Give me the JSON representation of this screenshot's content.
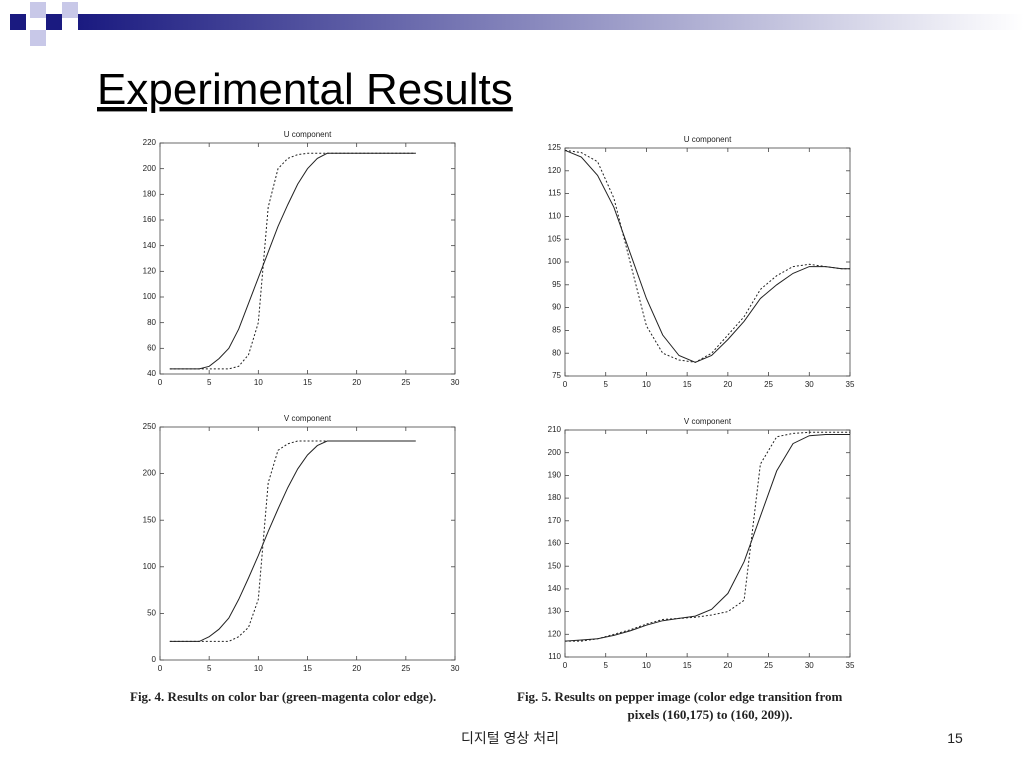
{
  "slide": {
    "title": "Experimental Results",
    "footer": "디지털 영상 처리",
    "page": "15",
    "captions": [
      "Fig. 4. Results on color bar (green-magenta color edge).",
      "Fig. 5. Results on pepper image (color edge transition from",
      "pixels (160,175) to (160, 209))."
    ]
  },
  "chart_data": [
    {
      "type": "line",
      "title": "U component",
      "x": [
        1,
        2,
        3,
        4,
        5,
        6,
        7,
        8,
        9,
        10,
        11,
        12,
        13,
        14,
        15,
        16,
        17,
        18,
        19,
        20,
        21,
        22,
        23,
        24,
        25,
        26
      ],
      "series": [
        {
          "color": "#222222",
          "linestyle": "solid",
          "values": [
            44,
            44,
            44,
            44,
            46,
            52,
            60,
            75,
            95,
            115,
            135,
            155,
            172,
            188,
            200,
            208,
            212,
            212,
            212,
            212,
            212,
            212,
            212,
            212,
            212,
            212
          ]
        },
        {
          "color": "#222222",
          "linestyle": "dotted",
          "values": [
            44,
            44,
            44,
            44,
            44,
            44,
            44,
            46,
            55,
            80,
            170,
            200,
            208,
            211,
            212,
            212,
            212,
            212,
            212,
            212,
            212,
            212,
            212,
            212,
            212,
            212
          ]
        }
      ],
      "xlim": [
        0,
        30
      ],
      "xticks": [
        0,
        5,
        10,
        15,
        20,
        25,
        30
      ],
      "ylim": [
        40,
        220
      ],
      "yticks": [
        40,
        60,
        80,
        100,
        120,
        140,
        160,
        180,
        200,
        220
      ]
    },
    {
      "type": "line",
      "title": "V component",
      "x": [
        1,
        2,
        3,
        4,
        5,
        6,
        7,
        8,
        9,
        10,
        11,
        12,
        13,
        14,
        15,
        16,
        17,
        18,
        19,
        20,
        21,
        22,
        23,
        24,
        25,
        26
      ],
      "series": [
        {
          "color": "#222222",
          "linestyle": "solid",
          "values": [
            20,
            20,
            20,
            20,
            25,
            33,
            45,
            65,
            88,
            112,
            138,
            162,
            185,
            205,
            220,
            230,
            235,
            235,
            235,
            235,
            235,
            235,
            235,
            235,
            235,
            235
          ]
        },
        {
          "color": "#222222",
          "linestyle": "dotted",
          "values": [
            20,
            20,
            20,
            20,
            20,
            20,
            20,
            25,
            35,
            65,
            190,
            225,
            232,
            235,
            235,
            235,
            235,
            235,
            235,
            235,
            235,
            235,
            235,
            235,
            235,
            235
          ]
        }
      ],
      "xlim": [
        0,
        30
      ],
      "xticks": [
        0,
        5,
        10,
        15,
        20,
        25,
        30
      ],
      "ylim": [
        0,
        250
      ],
      "yticks": [
        0,
        50,
        100,
        150,
        200,
        250
      ]
    },
    {
      "type": "line",
      "title": "U component",
      "x": [
        0,
        2,
        4,
        6,
        8,
        10,
        12,
        14,
        16,
        18,
        20,
        22,
        24,
        26,
        28,
        30,
        32,
        34,
        35
      ],
      "series": [
        {
          "color": "#222222",
          "linestyle": "solid",
          "values": [
            124.5,
            123,
            119,
            112,
            102,
            92,
            84,
            79.5,
            78,
            79.5,
            83,
            87,
            92,
            95,
            97.5,
            99,
            99,
            98.5,
            98.5
          ]
        },
        {
          "color": "#222222",
          "linestyle": "dotted",
          "values": [
            124.5,
            124,
            122,
            114,
            100,
            86,
            80,
            78.5,
            78,
            80,
            84,
            88,
            94,
            97,
            99,
            99.5,
            99,
            98.5,
            98.5
          ]
        }
      ],
      "xlim": [
        0,
        35
      ],
      "xticks": [
        0,
        5,
        10,
        15,
        20,
        25,
        30,
        35
      ],
      "ylim": [
        75,
        125
      ],
      "yticks": [
        75,
        80,
        85,
        90,
        95,
        100,
        105,
        110,
        115,
        120,
        125
      ]
    },
    {
      "type": "line",
      "title": "V component",
      "x": [
        0,
        2,
        4,
        6,
        8,
        10,
        12,
        14,
        16,
        18,
        20,
        22,
        24,
        26,
        28,
        30,
        32,
        35
      ],
      "series": [
        {
          "color": "#222222",
          "linestyle": "solid",
          "values": [
            117,
            117.5,
            118,
            119.5,
            121.5,
            124,
            126,
            127,
            128,
            131,
            138,
            152,
            172,
            192,
            204,
            207.5,
            208,
            208
          ]
        },
        {
          "color": "#222222",
          "linestyle": "dotted",
          "values": [
            117,
            117,
            118,
            120,
            122,
            124.5,
            126.5,
            127,
            127.5,
            128.5,
            130,
            135,
            195,
            207,
            208.5,
            209,
            209,
            209
          ]
        }
      ],
      "xlim": [
        0,
        35
      ],
      "xticks": [
        0,
        5,
        10,
        15,
        20,
        25,
        30,
        35
      ],
      "ylim": [
        110,
        210
      ],
      "yticks": [
        110,
        120,
        130,
        140,
        150,
        160,
        170,
        180,
        190,
        200,
        210
      ]
    }
  ]
}
